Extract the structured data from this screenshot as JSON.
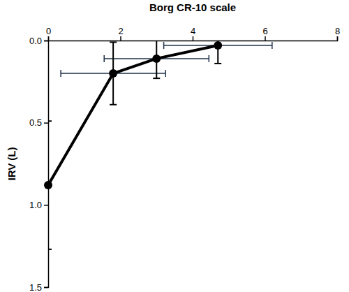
{
  "chart_data": {
    "type": "line",
    "x_label": "Borg CR-10 scale",
    "y_label": "IRV (L)",
    "x": [
      0,
      1.8,
      3.0,
      4.7
    ],
    "xlim": [
      0,
      8
    ],
    "xticks": [
      0,
      2,
      4,
      6,
      8
    ],
    "ylim": [
      0,
      1.5
    ],
    "yticks": [
      {
        "value": 0,
        "label": "0.0"
      },
      {
        "value": 0.5,
        "label": "0.5"
      },
      {
        "value": 1,
        "label": "1.0"
      },
      {
        "value": 1.5,
        "label": "1.5"
      }
    ],
    "series": [
      {
        "color": "#000000",
        "marker": "circle",
        "values": [
          0.88,
          0.2,
          0.11,
          0.03
        ],
        "y_errors": [
          0.39,
          0.19,
          0.12,
          0.11
        ],
        "x_errors": [
          null,
          1.45,
          1.45,
          1.5
        ]
      }
    ]
  }
}
